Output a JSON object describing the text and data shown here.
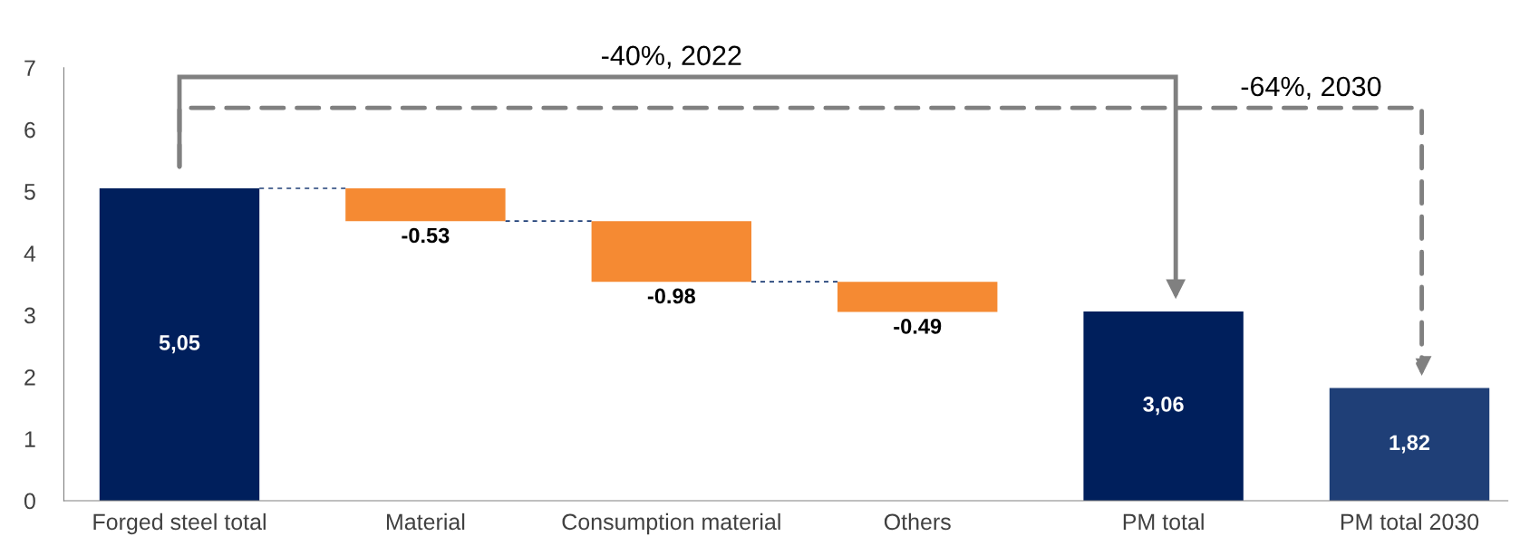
{
  "chart_data": {
    "type": "bar",
    "categories": [
      "Forged steel total",
      "Material",
      "Consumption material",
      "Others",
      "PM total",
      "PM total 2030"
    ],
    "values": [
      5.05,
      -0.53,
      -0.98,
      -0.49,
      3.06,
      1.82
    ],
    "base": [
      0,
      5.05,
      4.52,
      3.54,
      0,
      0
    ],
    "colors": [
      "#001f5c",
      "#f58a33",
      "#f58a33",
      "#f58a33",
      "#001f5c",
      "#1f3f77"
    ],
    "value_labels": [
      "5,05",
      "-0.53",
      "-0.98",
      "-0.49",
      "3,06",
      "1,82"
    ],
    "ylim": [
      0,
      7
    ],
    "yticks": [
      0,
      1,
      2,
      3,
      4,
      5,
      6,
      7
    ],
    "grid": false,
    "annotations": [
      "-40%, 2022",
      "-64%, 2030"
    ]
  }
}
